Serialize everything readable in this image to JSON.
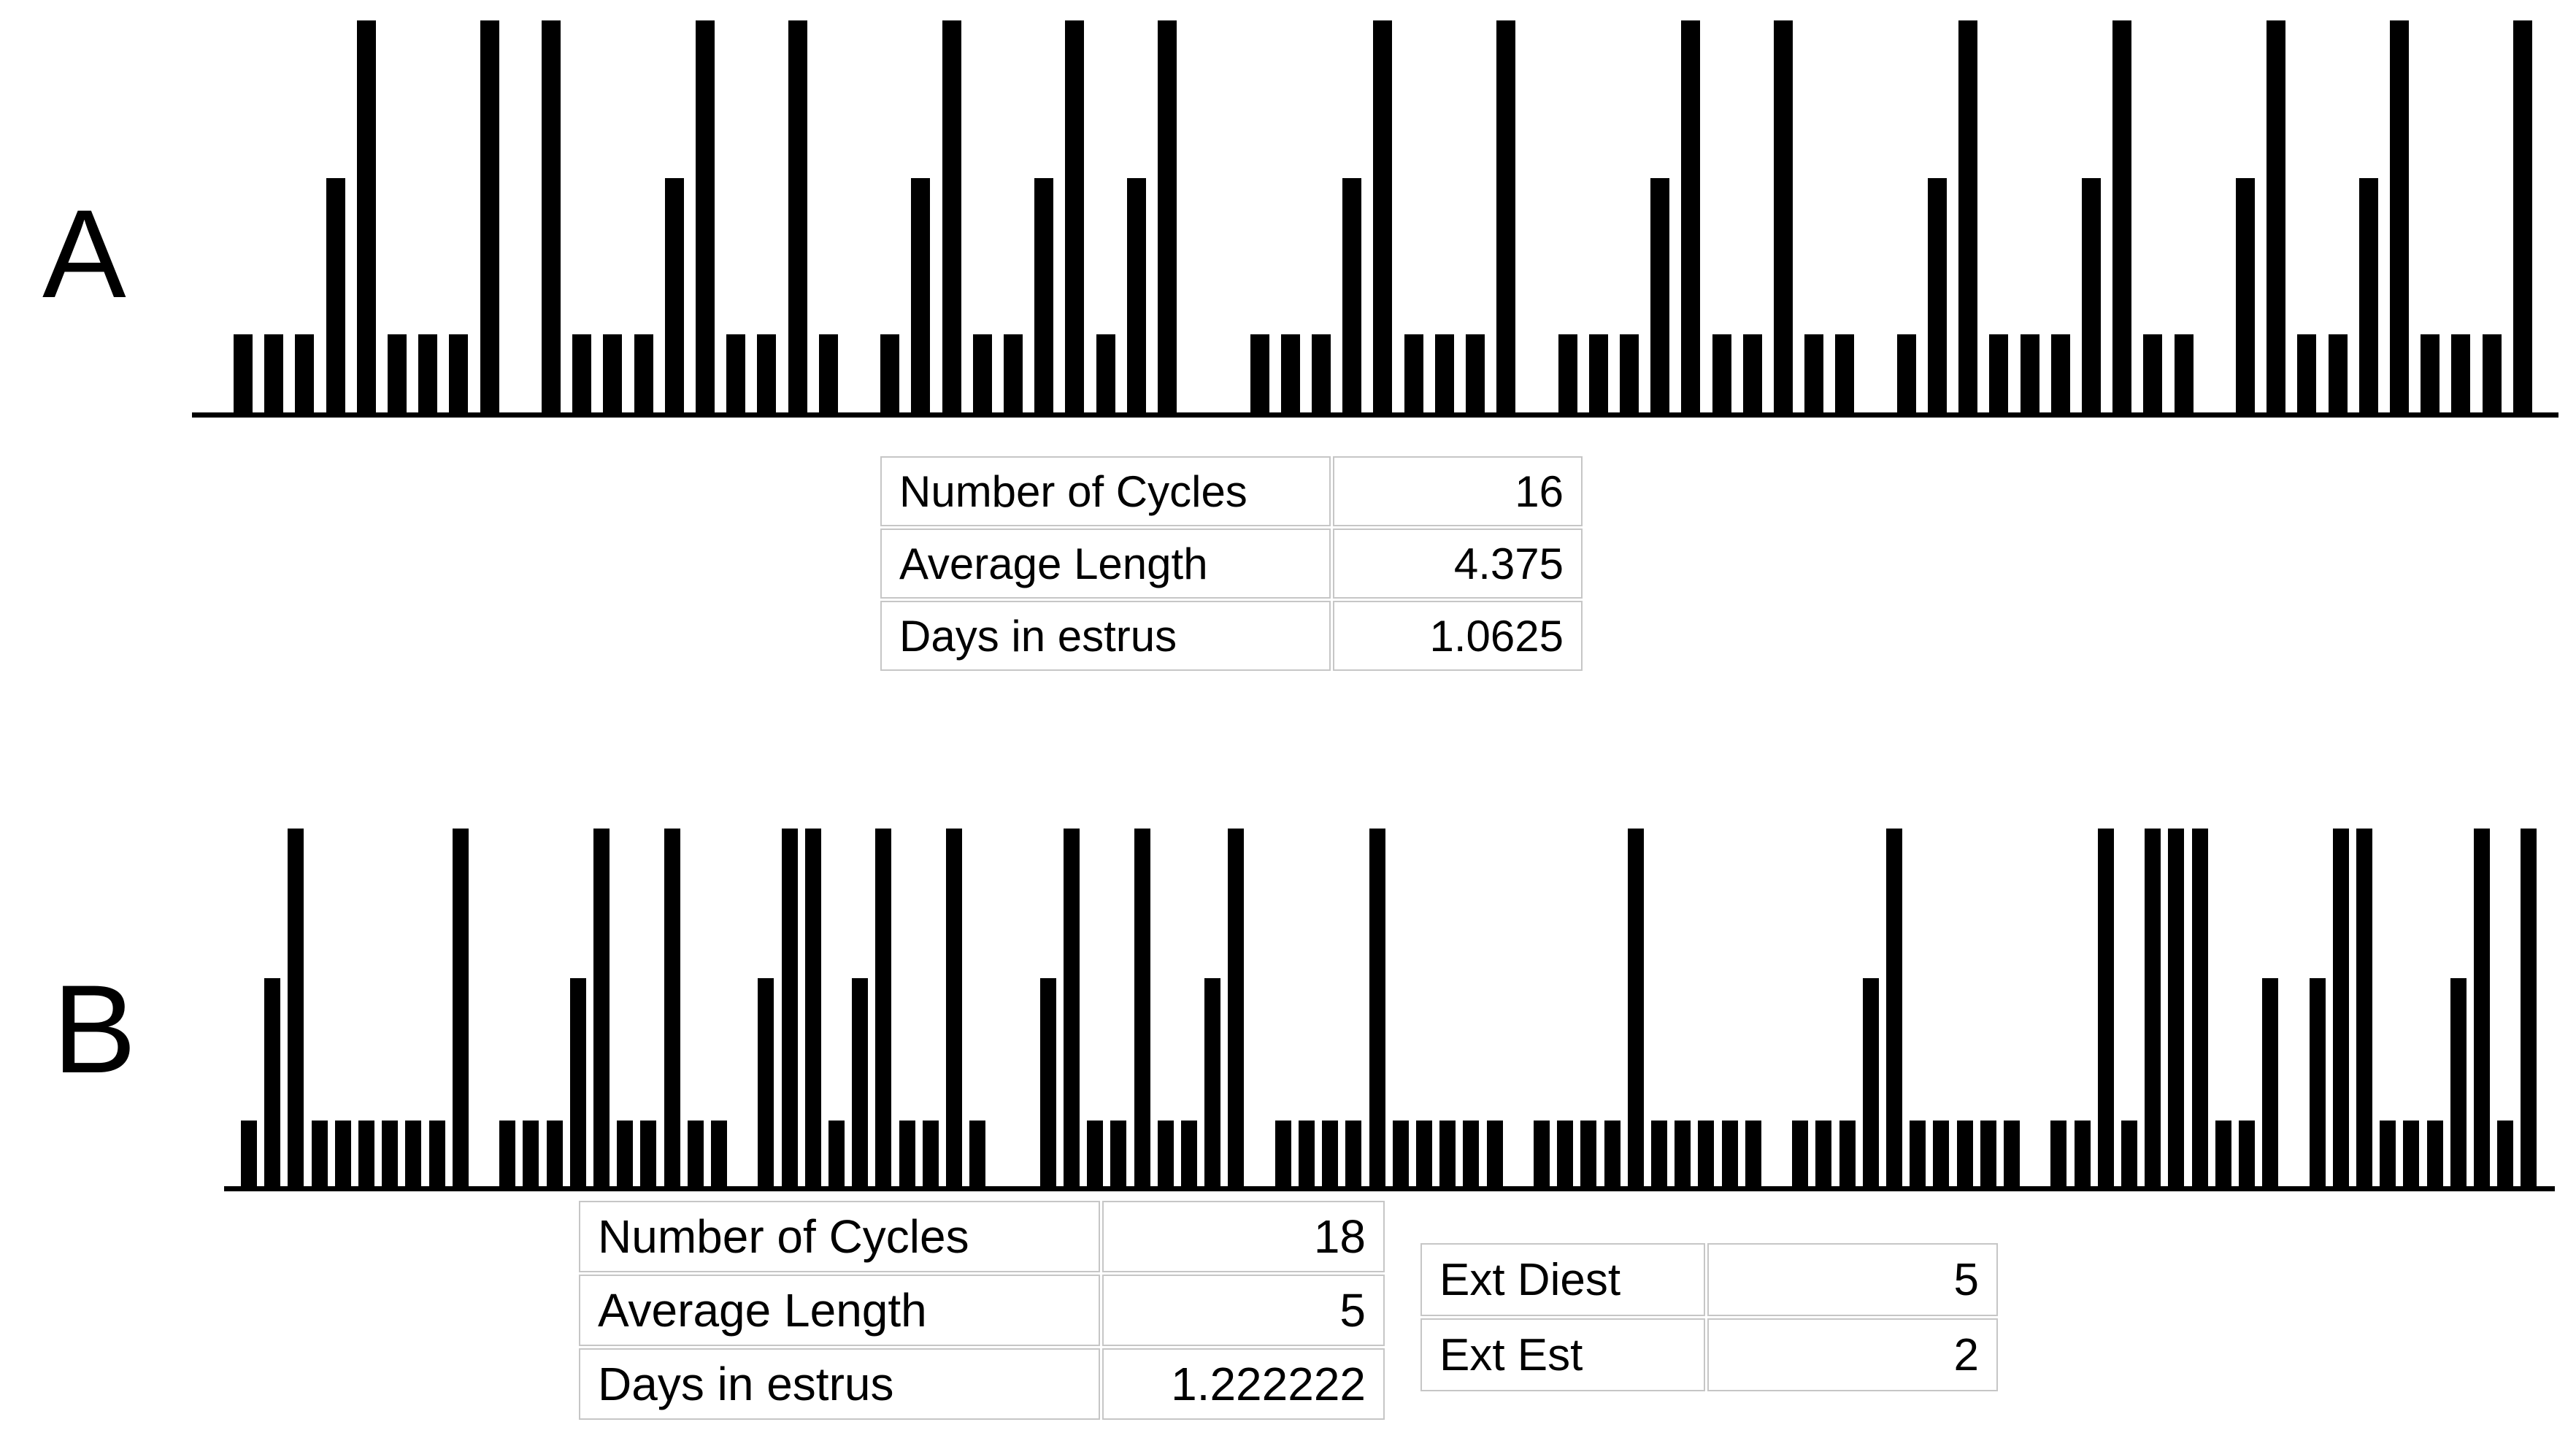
{
  "figure": {
    "background_color": "#ffffff",
    "bar_color": "#000000",
    "axis_color": "#000000",
    "table_border_color": "#c6c6c6",
    "text_color": "#000000"
  },
  "panels": [
    {
      "label": "A",
      "stats": [
        {
          "label": "Number of Cycles",
          "value": "16"
        },
        {
          "label": "Average Length",
          "value": "4.375"
        },
        {
          "label": "Days in estrus",
          "value": "1.0625"
        }
      ]
    },
    {
      "label": "B",
      "stats": [
        {
          "label": "Number of Cycles",
          "value": "18"
        },
        {
          "label": "Average Length",
          "value": "5"
        },
        {
          "label": "Days in estrus",
          "value": "1.222222"
        }
      ],
      "ext_stats": [
        {
          "label": "Ext Diest",
          "value": "5"
        },
        {
          "label": "Ext Est",
          "value": "2"
        }
      ]
    }
  ],
  "chart_data": [
    {
      "type": "bar",
      "panel": "A",
      "title": "",
      "xlabel": "",
      "ylabel": "",
      "grid": false,
      "legend": false,
      "x": "consecutive daily estrous-stage records (no axis labels shown)",
      "value_encoding": {
        "0": "no bar (blank day)",
        "1": "short bar (diestrus)",
        "2": "mid bar (proestrus)",
        "3": "tall bar (estrus)"
      },
      "values": [
        1,
        1,
        1,
        2,
        3,
        1,
        1,
        1,
        3,
        0,
        3,
        1,
        1,
        1,
        2,
        3,
        1,
        1,
        3,
        1,
        0,
        1,
        2,
        3,
        1,
        1,
        2,
        3,
        1,
        2,
        3,
        0,
        0,
        1,
        1,
        1,
        2,
        3,
        1,
        1,
        1,
        3,
        0,
        1,
        1,
        1,
        2,
        3,
        1,
        1,
        3,
        1,
        1,
        0,
        1,
        2,
        3,
        1,
        1,
        1,
        2,
        3,
        1,
        1,
        0,
        2,
        3,
        1,
        1,
        2,
        3,
        1,
        1,
        1,
        3
      ],
      "n_day_slots": 75,
      "n_bars": 68,
      "n_tall_bars": 17
    },
    {
      "type": "bar",
      "panel": "B",
      "title": "",
      "xlabel": "",
      "ylabel": "",
      "grid": false,
      "legend": false,
      "x": "consecutive daily estrous-stage records (no axis labels shown)",
      "value_encoding": {
        "0": "no bar (blank day)",
        "1": "short bar (diestrus)",
        "2": "mid bar (proestrus)",
        "3": "tall bar (estrus)"
      },
      "values": [
        1,
        2,
        3,
        1,
        1,
        1,
        1,
        1,
        1,
        3,
        0,
        1,
        1,
        1,
        2,
        3,
        1,
        1,
        3,
        1,
        1,
        0,
        2,
        3,
        3,
        1,
        2,
        3,
        1,
        1,
        3,
        1,
        0,
        0,
        2,
        3,
        1,
        1,
        3,
        1,
        1,
        2,
        3,
        0,
        1,
        1,
        1,
        1,
        3,
        1,
        1,
        1,
        1,
        1,
        0,
        1,
        1,
        1,
        1,
        3,
        1,
        1,
        1,
        1,
        1,
        0,
        1,
        1,
        1,
        2,
        3,
        1,
        1,
        1,
        1,
        1,
        0,
        1,
        1,
        3,
        1,
        3,
        3,
        3,
        1,
        1,
        2,
        0,
        2,
        3,
        3,
        1,
        1,
        1,
        2,
        3,
        1,
        3
      ],
      "n_day_slots": 98,
      "n_bars": 89,
      "n_tall_bars": 22
    }
  ]
}
